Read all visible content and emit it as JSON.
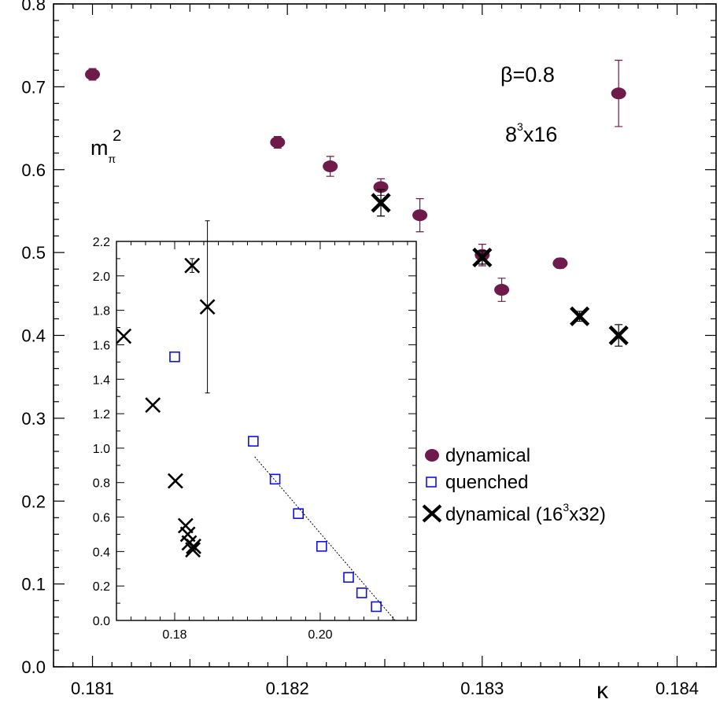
{
  "chart_data": [
    {
      "type": "scatter",
      "title": "",
      "xlabel": "κ",
      "ylabel": "mπ²",
      "xlim": [
        0.1808,
        0.1842
      ],
      "ylim": [
        0.0,
        0.8
      ],
      "x_ticks": [
        "0.181",
        "0.182",
        "0.183",
        "0.184"
      ],
      "x_tick_values": [
        0.181,
        0.182,
        0.183,
        0.184
      ],
      "y_ticks": [
        "0.0",
        "0.1",
        "0.2",
        "0.3",
        "0.4",
        "0.5",
        "0.6",
        "0.7",
        "0.8"
      ],
      "y_tick_values": [
        0.0,
        0.1,
        0.2,
        0.3,
        0.4,
        0.5,
        0.6,
        0.7,
        0.8
      ],
      "annotations": {
        "ylabel_base": "m",
        "ylabel_sub": "π",
        "ylabel_sup": "2",
        "beta": "β=0.8",
        "lattice_base": "8",
        "lattice_sup": "3",
        "lattice_rest": "x16"
      },
      "legend_position": "right",
      "series": [
        {
          "name": "dynamical",
          "marker": "filled-circle",
          "color": "#6e1a4b",
          "points": [
            {
              "x": 0.181,
              "y": 0.715,
              "err": 0.007
            },
            {
              "x": 0.18195,
              "y": 0.633,
              "err": 0.007
            },
            {
              "x": 0.18222,
              "y": 0.604,
              "err": 0.012
            },
            {
              "x": 0.18248,
              "y": 0.579,
              "err": 0.01
            },
            {
              "x": 0.18268,
              "y": 0.545,
              "err": 0.02
            },
            {
              "x": 0.183,
              "y": 0.497,
              "err": 0.013
            },
            {
              "x": 0.1831,
              "y": 0.455,
              "err": 0.014
            },
            {
              "x": 0.1834,
              "y": 0.487,
              "err": 0.006
            },
            {
              "x": 0.1837,
              "y": 0.692,
              "err": 0.04
            }
          ]
        },
        {
          "name": "quenched",
          "marker": "open-square",
          "color": "#1010e0",
          "points": []
        },
        {
          "name_base": "dynamical (16",
          "name_sup": "3",
          "name_rest": "x32)",
          "marker": "cross",
          "color": "#000000",
          "points": [
            {
              "x": 0.18248,
              "y": 0.56,
              "err": 0.016
            },
            {
              "x": 0.183,
              "y": 0.494,
              "err": 0.008
            },
            {
              "x": 0.1835,
              "y": 0.423,
              "err": 0.006
            },
            {
              "x": 0.1837,
              "y": 0.4,
              "err": 0.013
            }
          ]
        }
      ]
    },
    {
      "type": "scatter",
      "title": "",
      "xlabel": "",
      "ylabel": "",
      "xlim": [
        0.172,
        0.2132
      ],
      "ylim": [
        0.0,
        2.2
      ],
      "x_ticks": [
        "0.18",
        "0.20"
      ],
      "x_tick_values": [
        0.18,
        0.2
      ],
      "y_ticks": [
        "0.0",
        "0.2",
        "0.4",
        "0.6",
        "0.8",
        "1.0",
        "1.2",
        "1.4",
        "1.6",
        "1.8",
        "2.0",
        "2.2"
      ],
      "y_tick_values": [
        0.0,
        0.2,
        0.4,
        0.6,
        0.8,
        1.0,
        1.2,
        1.4,
        1.6,
        1.8,
        2.0,
        2.2
      ],
      "series": [
        {
          "name": "dynamical",
          "marker": "cross",
          "color": "#000000",
          "points": [
            {
              "x": 0.173,
              "y": 1.65
            },
            {
              "x": 0.177,
              "y": 1.25
            },
            {
              "x": 0.1801,
              "y": 0.81
            },
            {
              "x": 0.1824,
              "y": 2.06,
              "err": 0.04
            },
            {
              "x": 0.1845,
              "y": 1.82,
              "err": 0.5
            },
            {
              "x": 0.1815,
              "y": 0.55
            },
            {
              "x": 0.1818,
              "y": 0.5
            },
            {
              "x": 0.182,
              "y": 0.45
            },
            {
              "x": 0.1825,
              "y": 0.41
            },
            {
              "x": 0.1826,
              "y": 0.43
            }
          ]
        },
        {
          "name": "quenched",
          "marker": "open-square",
          "color": "#1010e0",
          "points": [
            {
              "x": 0.18,
              "y": 1.53
            },
            {
              "x": 0.1908,
              "y": 1.04
            },
            {
              "x": 0.1938,
              "y": 0.82
            },
            {
              "x": 0.197,
              "y": 0.62
            },
            {
              "x": 0.2002,
              "y": 0.43
            },
            {
              "x": 0.2039,
              "y": 0.25
            },
            {
              "x": 0.2057,
              "y": 0.16
            },
            {
              "x": 0.2077,
              "y": 0.08
            }
          ]
        }
      ],
      "fit_line": {
        "style": "dotted",
        "color": "#000000",
        "points": [
          {
            "x": 0.191,
            "y": 0.95
          },
          {
            "x": 0.2103,
            "y": 0.0
          }
        ]
      }
    }
  ]
}
